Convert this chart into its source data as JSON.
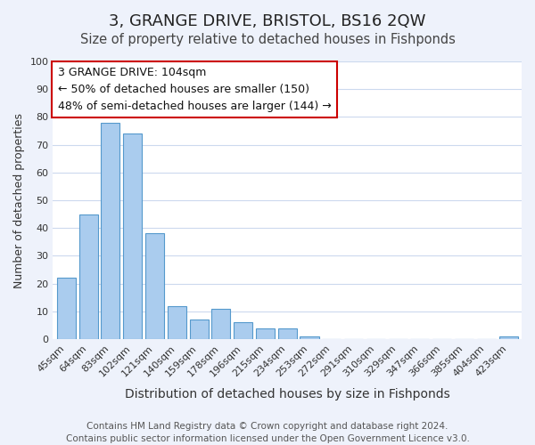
{
  "title": "3, GRANGE DRIVE, BRISTOL, BS16 2QW",
  "subtitle": "Size of property relative to detached houses in Fishponds",
  "xlabel": "Distribution of detached houses by size in Fishponds",
  "ylabel": "Number of detached properties",
  "bar_values": [
    22,
    45,
    78,
    74,
    38,
    12,
    7,
    11,
    6,
    4,
    4,
    1,
    0,
    0,
    0,
    0,
    0,
    0,
    0,
    0,
    1
  ],
  "bar_labels": [
    "45sqm",
    "64sqm",
    "83sqm",
    "102sqm",
    "121sqm",
    "140sqm",
    "159sqm",
    "178sqm",
    "196sqm",
    "215sqm",
    "234sqm",
    "253sqm",
    "272sqm",
    "291sqm",
    "310sqm",
    "329sqm",
    "347sqm",
    "366sqm",
    "385sqm",
    "404sqm",
    "423sqm"
  ],
  "bar_color": "#aaccee",
  "bar_edge_color": "#5599cc",
  "annotation_box_text": "3 GRANGE DRIVE: 104sqm\n← 50% of detached houses are smaller (150)\n48% of semi-detached houses are larger (144) →",
  "annotation_box_edge_color": "#cc0000",
  "annotation_box_bg_color": "#ffffff",
  "ylim": [
    0,
    100
  ],
  "yticks": [
    0,
    10,
    20,
    30,
    40,
    50,
    60,
    70,
    80,
    90,
    100
  ],
  "footnote": "Contains HM Land Registry data © Crown copyright and database right 2024.\nContains public sector information licensed under the Open Government Licence v3.0.",
  "bg_color": "#eef2fb",
  "plot_bg_color": "#ffffff",
  "grid_color": "#ccd9ee",
  "title_fontsize": 13,
  "subtitle_fontsize": 10.5,
  "xlabel_fontsize": 10,
  "ylabel_fontsize": 9,
  "tick_fontsize": 8,
  "annotation_fontsize": 9,
  "footnote_fontsize": 7.5
}
